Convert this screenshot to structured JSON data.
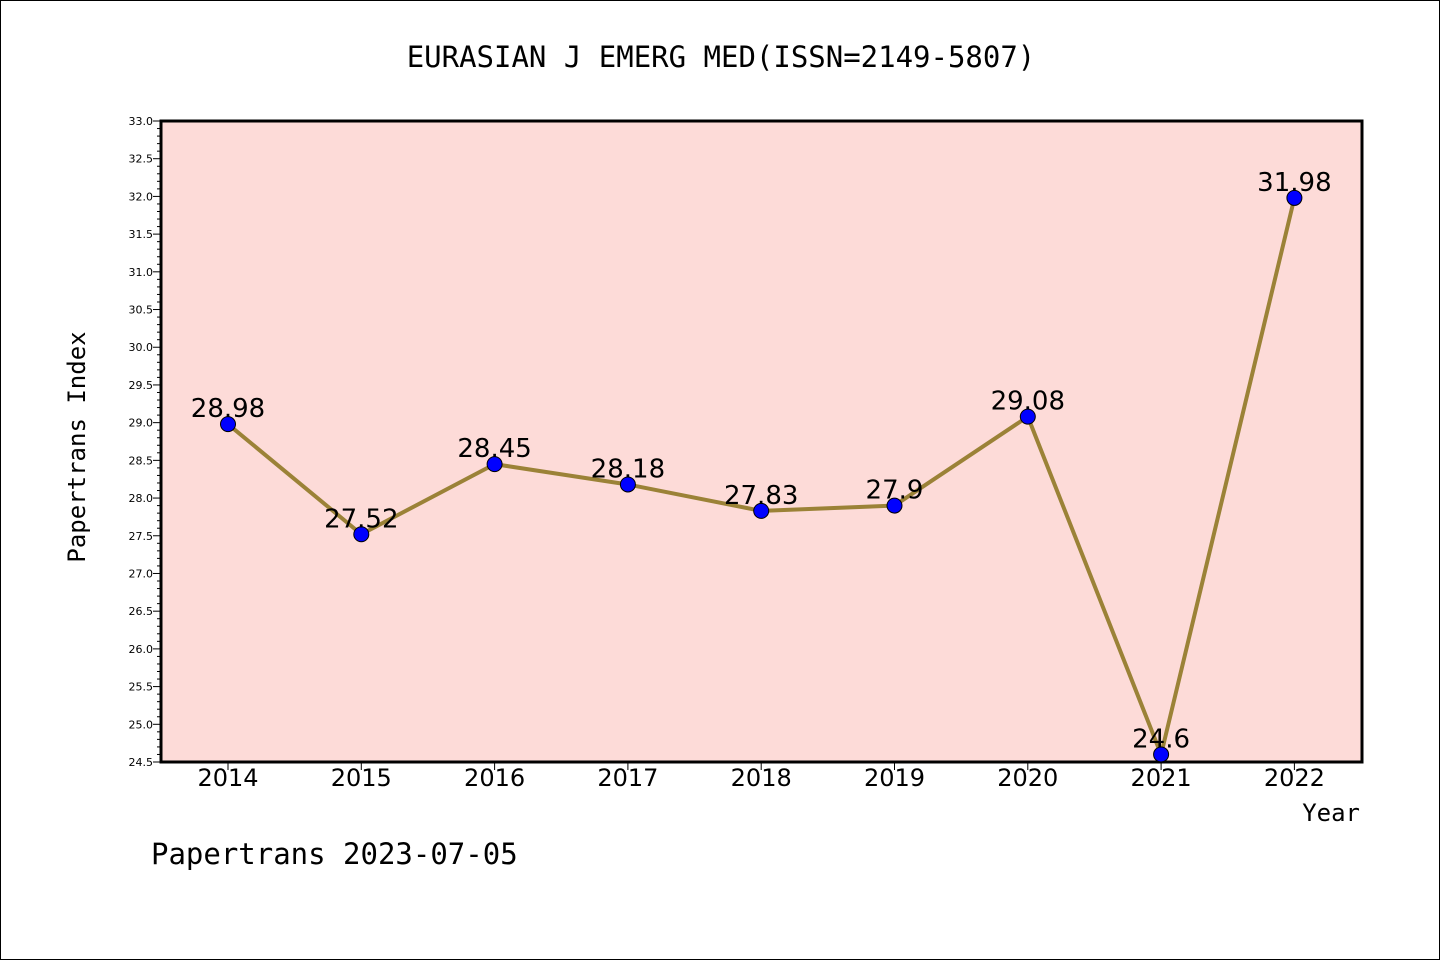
{
  "chart_data": {
    "type": "line",
    "title": "EURASIAN J EMERG MED(ISSN=2149-5807)",
    "xlabel": "Year",
    "ylabel": "Papertrans Index",
    "x": [
      "2014",
      "2015",
      "2016",
      "2017",
      "2018",
      "2019",
      "2020",
      "2021",
      "2022"
    ],
    "series": [
      {
        "values": [
          28.98,
          27.52,
          28.45,
          28.18,
          27.83,
          27.9,
          29.08,
          24.6,
          31.98
        ],
        "labels": [
          "28.98",
          "27.52",
          "28.45",
          "28.18",
          "27.83",
          "27.9",
          "29.08",
          "24.6",
          "31.98"
        ],
        "line_color": "#9b8237",
        "marker_color": "#0000ff"
      }
    ],
    "ylim": [
      24.5,
      33.0
    ],
    "yticks": [
      "24.5",
      "25.0",
      "25.5",
      "26.0",
      "26.5",
      "27.0",
      "27.5",
      "28.0",
      "28.5",
      "29.0",
      "29.5",
      "30.0",
      "30.5",
      "31.0",
      "31.5",
      "32.0",
      "32.5",
      "33.0"
    ],
    "grid": false,
    "legend": "none",
    "plot_background": "#fddbd8",
    "footer": "Papertrans 2023-07-05"
  }
}
